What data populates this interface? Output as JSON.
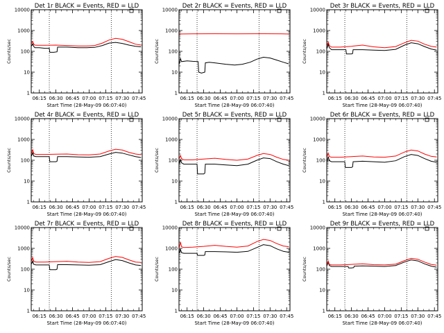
{
  "figure": {
    "xtick_labels": [
      "06:15",
      "06:30",
      "06:45",
      "07:00",
      "07:15",
      "07:30",
      "07:45"
    ],
    "ytick_labels": [
      "1",
      "10",
      "100",
      "1000",
      "10000"
    ],
    "ylabel": "Counts/sec",
    "xlabel": "Start Time (28-May-09 06:07:40)",
    "colors": {
      "events": "#000000",
      "lld": "#ff0000",
      "axes": "#000000",
      "background": "#ffffff"
    }
  },
  "chart_data": [
    {
      "type": "line",
      "title": "Det 1r BLACK = Events, RED = LLD",
      "xlabel": "Start Time (28-May-09 06:07:40)",
      "ylabel": "Counts/sec",
      "xlim": [
        "06:07:40",
        "07:48:00"
      ],
      "ylim": [
        1,
        10000
      ],
      "log_y": true,
      "series": [
        {
          "name": "Events",
          "color": "#000000",
          "x": [
            "06:08",
            "06:09",
            "06:10",
            "06:11",
            "06:13",
            "06:15",
            "06:20",
            "06:24",
            "06:24.5",
            "06:28",
            "06:31",
            "06:31.5",
            "06:40",
            "06:50",
            "06:58",
            "07:05",
            "07:12",
            "07:18",
            "07:24",
            "07:30",
            "07:36",
            "07:42",
            "07:47"
          ],
          "y": [
            180,
            230,
            170,
            150,
            150,
            150,
            140,
            140,
            90,
            90,
            95,
            160,
            160,
            150,
            150,
            155,
            190,
            250,
            270,
            240,
            200,
            175,
            165
          ]
        },
        {
          "name": "LLD",
          "color": "#ff0000",
          "x": [
            "06:08",
            "06:09",
            "06:10",
            "06:11",
            "06:13",
            "06:20",
            "06:30",
            "06:40",
            "06:50",
            "06:58",
            "07:05",
            "07:12",
            "07:18",
            "07:24",
            "07:30",
            "07:36",
            "07:42",
            "07:47"
          ],
          "y": [
            240,
            300,
            220,
            200,
            195,
            195,
            200,
            190,
            180,
            180,
            190,
            250,
            350,
            420,
            380,
            290,
            220,
            200
          ]
        }
      ]
    },
    {
      "type": "line",
      "title": "Det 2r BLACK = Events, RED = LLD",
      "xlabel": "Start Time (28-May-09 06:07:40)",
      "ylabel": "Counts/sec",
      "xlim": [
        "06:07:40",
        "07:48:00"
      ],
      "ylim": [
        1,
        10000
      ],
      "log_y": true,
      "series": [
        {
          "name": "Events",
          "color": "#000000",
          "x": [
            "06:08",
            "06:09",
            "06:10",
            "06:15",
            "06:20",
            "06:25",
            "06:25.5",
            "06:28",
            "06:31",
            "06:31.5",
            "06:35",
            "06:40",
            "06:50",
            "06:58",
            "07:05",
            "07:12",
            "07:18",
            "07:24",
            "07:30",
            "07:36",
            "07:42",
            "07:47"
          ],
          "y": [
            25,
            45,
            32,
            35,
            33,
            32,
            10,
            9,
            10,
            28,
            30,
            28,
            24,
            22,
            24,
            30,
            42,
            52,
            48,
            38,
            30,
            25
          ]
        },
        {
          "name": "LLD",
          "color": "#ff0000",
          "x": [
            "06:08",
            "06:20",
            "06:40",
            "07:00",
            "07:20",
            "07:40",
            "07:47"
          ],
          "y": [
            680,
            690,
            700,
            690,
            700,
            690,
            680
          ]
        }
      ]
    },
    {
      "type": "line",
      "title": "Det 3r BLACK = Events, RED = LLD",
      "xlabel": "Start Time (28-May-09 06:07:40)",
      "ylabel": "Counts/sec",
      "xlim": [
        "06:07:40",
        "07:48:00"
      ],
      "ylim": [
        1,
        10000
      ],
      "log_y": true,
      "series": [
        {
          "name": "Events",
          "color": "#000000",
          "x": [
            "06:08",
            "06:09",
            "06:10",
            "06:12",
            "06:20",
            "06:25",
            "06:25.5",
            "06:30",
            "06:31",
            "06:31.5",
            "06:40",
            "06:50",
            "07:00",
            "07:10",
            "07:18",
            "07:24",
            "07:30",
            "07:36",
            "07:42",
            "07:47"
          ],
          "y": [
            140,
            220,
            150,
            120,
            120,
            120,
            75,
            75,
            78,
            120,
            120,
            115,
            110,
            125,
            200,
            260,
            230,
            170,
            130,
            115
          ]
        },
        {
          "name": "LLD",
          "color": "#ff0000",
          "x": [
            "06:08",
            "06:09",
            "06:10",
            "06:12",
            "06:20",
            "06:30",
            "06:40",
            "06:50",
            "07:00",
            "07:10",
            "07:18",
            "07:24",
            "07:30",
            "07:36",
            "07:42",
            "07:47"
          ],
          "y": [
            200,
            280,
            190,
            160,
            160,
            175,
            200,
            165,
            150,
            170,
            260,
            340,
            310,
            220,
            175,
            160
          ]
        }
      ]
    },
    {
      "type": "line",
      "title": "Det 4r BLACK = Events, RED = LLD",
      "xlabel": "Start Time (28-May-09 06:07:40)",
      "ylabel": "Counts/sec",
      "xlim": [
        "06:07:40",
        "07:48:00"
      ],
      "ylim": [
        1,
        10000
      ],
      "log_y": true,
      "series": [
        {
          "name": "Events",
          "color": "#000000",
          "x": [
            "06:08",
            "06:09",
            "06:10",
            "06:12",
            "06:20",
            "06:24",
            "06:24.5",
            "06:30",
            "06:31",
            "06:31.5",
            "06:40",
            "06:50",
            "07:00",
            "07:10",
            "07:18",
            "07:24",
            "07:30",
            "07:36",
            "07:42",
            "07:47"
          ],
          "y": [
            160,
            230,
            160,
            150,
            150,
            150,
            85,
            85,
            90,
            150,
            150,
            145,
            140,
            150,
            200,
            240,
            220,
            180,
            150,
            135
          ]
        },
        {
          "name": "LLD",
          "color": "#ff0000",
          "x": [
            "06:08",
            "06:09",
            "06:10",
            "06:12",
            "06:20",
            "06:30",
            "06:40",
            "06:50",
            "07:00",
            "07:10",
            "07:18",
            "07:24",
            "07:30",
            "07:36",
            "07:42",
            "07:47"
          ],
          "y": [
            220,
            320,
            210,
            190,
            190,
            195,
            200,
            185,
            180,
            200,
            280,
            340,
            310,
            240,
            200,
            185
          ]
        }
      ]
    },
    {
      "type": "line",
      "title": "Det 5r BLACK = Events, RED = LLD",
      "xlabel": "Start Time (28-May-09 06:07:40)",
      "ylabel": "Counts/sec",
      "xlim": [
        "06:07:40",
        "07:48:00"
      ],
      "ylim": [
        1,
        10000
      ],
      "log_y": true,
      "series": [
        {
          "name": "Events",
          "color": "#000000",
          "x": [
            "06:08",
            "06:09",
            "06:10",
            "06:12",
            "06:20",
            "06:24",
            "06:24.5",
            "06:30",
            "06:31",
            "06:31.5",
            "06:40",
            "06:50",
            "07:00",
            "07:10",
            "07:18",
            "07:24",
            "07:30",
            "07:36",
            "07:42",
            "07:47"
          ],
          "y": [
            70,
            110,
            75,
            65,
            65,
            65,
            22,
            22,
            24,
            65,
            65,
            60,
            55,
            65,
            100,
            130,
            120,
            85,
            65,
            55
          ]
        },
        {
          "name": "LLD",
          "color": "#ff0000",
          "x": [
            "06:08",
            "06:09",
            "06:10",
            "06:12",
            "06:20",
            "06:30",
            "06:40",
            "06:50",
            "07:00",
            "07:10",
            "07:18",
            "07:24",
            "07:30",
            "07:36",
            "07:42",
            "07:47"
          ],
          "y": [
            120,
            170,
            120,
            105,
            105,
            115,
            125,
            110,
            100,
            115,
            170,
            210,
            190,
            140,
            110,
            100
          ]
        }
      ]
    },
    {
      "type": "line",
      "title": "Det 6r BLACK = Events, RED = LLD",
      "xlabel": "Start Time (28-May-09 06:07:40)",
      "ylabel": "Counts/sec",
      "xlim": [
        "06:07:40",
        "07:48:00"
      ],
      "ylim": [
        1,
        10000
      ],
      "log_y": true,
      "series": [
        {
          "name": "Events",
          "color": "#000000",
          "x": [
            "06:08",
            "06:09",
            "06:10",
            "06:12",
            "06:20",
            "06:24",
            "06:24.5",
            "06:30",
            "06:31",
            "06:31.5",
            "06:40",
            "06:50",
            "07:00",
            "07:10",
            "07:18",
            "07:24",
            "07:30",
            "07:36",
            "07:42",
            "07:47"
          ],
          "y": [
            90,
            150,
            95,
            85,
            85,
            85,
            45,
            45,
            48,
            85,
            90,
            85,
            80,
            95,
            150,
            190,
            170,
            120,
            90,
            80
          ]
        },
        {
          "name": "LLD",
          "color": "#ff0000",
          "x": [
            "06:08",
            "06:09",
            "06:10",
            "06:12",
            "06:20",
            "06:30",
            "06:40",
            "06:50",
            "07:00",
            "07:10",
            "07:18",
            "07:24",
            "07:30",
            "07:36",
            "07:42",
            "07:47"
          ],
          "y": [
            150,
            220,
            150,
            140,
            140,
            150,
            160,
            145,
            140,
            160,
            250,
            310,
            280,
            200,
            155,
            145
          ]
        }
      ]
    },
    {
      "type": "line",
      "title": "Det 7r BLACK = Events, RED = LLD",
      "xlabel": "Start Time (28-May-09 06:07:40)",
      "ylabel": "Counts/sec",
      "xlim": [
        "06:07:40",
        "07:48:00"
      ],
      "ylim": [
        1,
        10000
      ],
      "log_y": true,
      "series": [
        {
          "name": "Events",
          "color": "#000000",
          "x": [
            "06:08",
            "06:09",
            "06:10",
            "06:12",
            "06:20",
            "06:24",
            "06:24.5",
            "06:30",
            "06:31",
            "06:31.5",
            "06:40",
            "06:50",
            "07:00",
            "07:10",
            "07:18",
            "07:24",
            "07:30",
            "07:36",
            "07:42",
            "07:47"
          ],
          "y": [
            180,
            250,
            170,
            160,
            160,
            160,
            95,
            95,
            100,
            165,
            165,
            160,
            155,
            165,
            230,
            290,
            260,
            200,
            160,
            150
          ]
        },
        {
          "name": "LLD",
          "color": "#ff0000",
          "x": [
            "06:08",
            "06:09",
            "06:10",
            "06:12",
            "06:20",
            "06:30",
            "06:40",
            "06:50",
            "07:00",
            "07:10",
            "07:18",
            "07:24",
            "07:30",
            "07:36",
            "07:42",
            "07:47"
          ],
          "y": [
            250,
            360,
            240,
            220,
            220,
            230,
            240,
            220,
            210,
            230,
            330,
            410,
            370,
            280,
            220,
            210
          ]
        }
      ]
    },
    {
      "type": "line",
      "title": "Det 8r BLACK = Events, RED = LLD",
      "xlabel": "Start Time (28-May-09 06:07:40)",
      "ylabel": "Counts/sec",
      "xlim": [
        "06:07:40",
        "07:48:00"
      ],
      "ylim": [
        1,
        10000
      ],
      "log_y": true,
      "series": [
        {
          "name": "Events",
          "color": "#000000",
          "x": [
            "06:08",
            "06:09",
            "06:10",
            "06:12",
            "06:20",
            "06:24",
            "06:24.5",
            "06:30",
            "06:31",
            "06:31.5",
            "06:40",
            "06:50",
            "07:00",
            "07:10",
            "07:18",
            "07:24",
            "07:30",
            "07:36",
            "07:42",
            "07:47"
          ],
          "y": [
            600,
            900,
            620,
            580,
            580,
            580,
            460,
            460,
            480,
            700,
            700,
            680,
            650,
            720,
            1100,
            1500,
            1350,
            950,
            720,
            650
          ]
        },
        {
          "name": "LLD",
          "color": "#ff0000",
          "x": [
            "06:08",
            "06:09",
            "06:10",
            "06:12",
            "06:20",
            "06:30",
            "06:40",
            "06:50",
            "07:00",
            "07:10",
            "07:18",
            "07:24",
            "07:30",
            "07:36",
            "07:42",
            "07:47"
          ],
          "y": [
            1100,
            2000,
            1200,
            1100,
            1150,
            1250,
            1400,
            1250,
            1150,
            1300,
            2100,
            2700,
            2400,
            1700,
            1300,
            1200
          ]
        }
      ]
    },
    {
      "type": "line",
      "title": "Det 9r BLACK = Events, RED = LLD",
      "xlabel": "Start Time (28-May-09 06:07:40)",
      "ylabel": "Counts/sec",
      "xlim": [
        "06:07:40",
        "07:48:00"
      ],
      "ylim": [
        1,
        10000
      ],
      "log_y": true,
      "series": [
        {
          "name": "Events",
          "color": "#000000",
          "x": [
            "06:08",
            "06:09",
            "06:10",
            "06:12",
            "06:20",
            "06:27",
            "06:27.5",
            "06:30",
            "06:32",
            "06:32.5",
            "06:40",
            "06:50",
            "07:00",
            "07:10",
            "07:18",
            "07:24",
            "07:30",
            "07:36",
            "07:42",
            "07:47"
          ],
          "y": [
            150,
            220,
            150,
            135,
            135,
            135,
            115,
            115,
            118,
            140,
            145,
            140,
            135,
            150,
            220,
            280,
            250,
            180,
            140,
            125
          ]
        },
        {
          "name": "LLD",
          "color": "#ff0000",
          "x": [
            "06:08",
            "06:09",
            "06:10",
            "06:12",
            "06:20",
            "06:30",
            "06:40",
            "06:50",
            "07:00",
            "07:10",
            "07:18",
            "07:24",
            "07:30",
            "07:36",
            "07:42",
            "07:47"
          ],
          "y": [
            170,
            250,
            170,
            160,
            160,
            170,
            180,
            165,
            160,
            175,
            260,
            330,
            300,
            220,
            170,
            155
          ]
        }
      ]
    }
  ]
}
